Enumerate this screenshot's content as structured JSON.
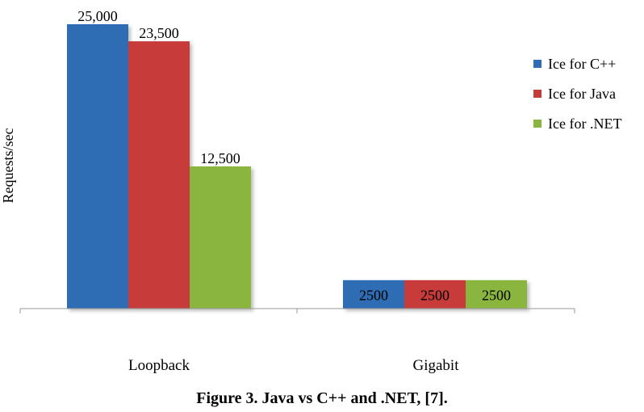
{
  "caption": "Figure 3. Java vs C++ and .NET, [7].",
  "chart_data": {
    "type": "bar",
    "ylabel": "Requests/sec",
    "categories": [
      "Loopback",
      "Gigabit"
    ],
    "series": [
      {
        "name": "Ice for C++",
        "color": "#2e6db4",
        "values": [
          25000,
          2500
        ],
        "labels": [
          "25,000",
          "2500"
        ]
      },
      {
        "name": "Ice for Java",
        "color": "#c73a3a",
        "values": [
          23500,
          2500
        ],
        "labels": [
          "23,500",
          "2500"
        ]
      },
      {
        "name": "Ice for .NET",
        "color": "#8ab63f",
        "values": [
          12500,
          2500
        ],
        "labels": [
          "12,500",
          "2500"
        ]
      }
    ],
    "ylim": [
      0,
      25000
    ],
    "grid": false,
    "legend": "right"
  }
}
